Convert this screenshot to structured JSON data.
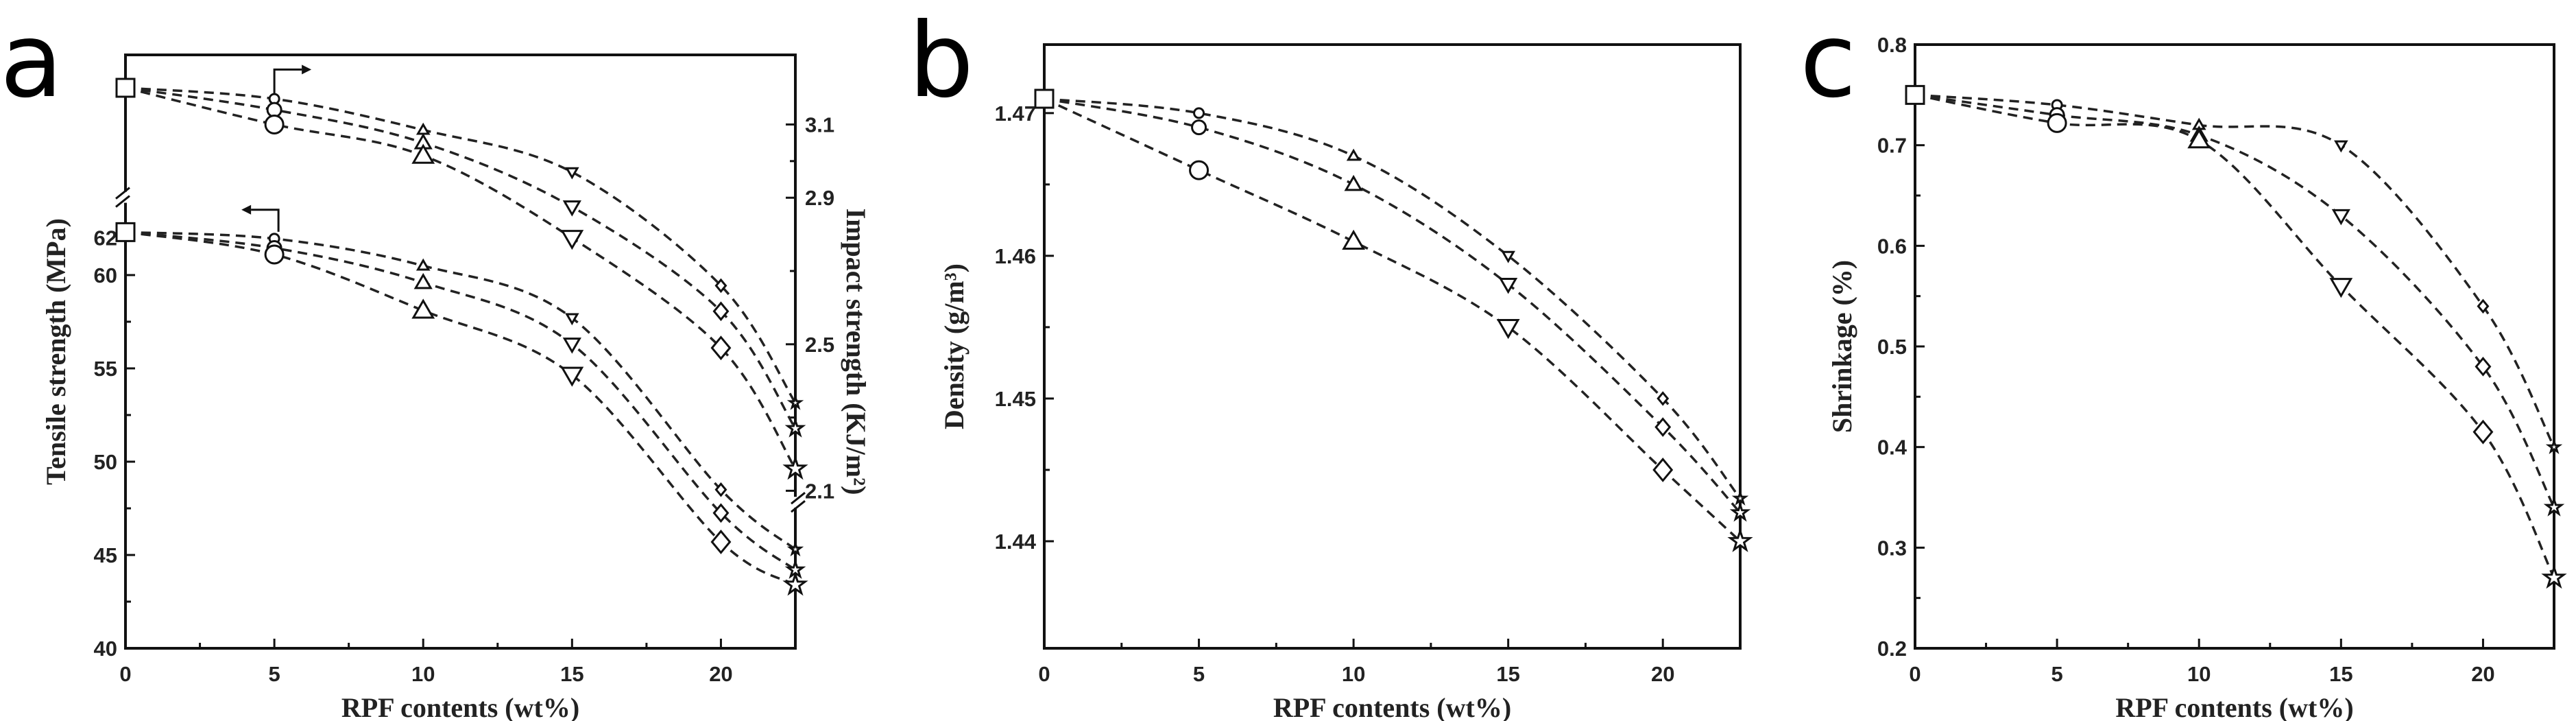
{
  "chart_data": [
    {
      "panel_label": "a",
      "type": "line",
      "xlabel": "RPF contents (wt%)",
      "ylabel": "Tensile strength (MPa)",
      "y2label": "Impact strength (KJ/m²)",
      "x": [
        0,
        5,
        10,
        15,
        20,
        22.5
      ],
      "xlim": [
        0,
        22.5
      ],
      "xticks": [
        0,
        5,
        10,
        15,
        20
      ],
      "ylim": [
        40,
        71.8
      ],
      "yticks": [
        40,
        45,
        50,
        55,
        60,
        62
      ],
      "y2lim": [
        1.67,
        3.29
      ],
      "y2ticks": [
        2.1,
        2.5,
        2.9,
        3.1
      ],
      "axis_break": true,
      "markers": [
        "square",
        "circle",
        "triangle-up",
        "triangle-down",
        "diamond",
        "star"
      ],
      "series": [
        {
          "axis": "left",
          "values": [
            62.3,
            61.95,
            60.5,
            57.7,
            48.5,
            45.3
          ]
        },
        {
          "axis": "left",
          "values": [
            62.3,
            61.45,
            59.6,
            56.3,
            47.25,
            44.2
          ]
        },
        {
          "axis": "left",
          "values": [
            62.3,
            61.1,
            58.1,
            54.65,
            45.7,
            43.4
          ]
        },
        {
          "axis": "right",
          "values": [
            3.2,
            3.17,
            3.085,
            2.97,
            2.66,
            2.34
          ]
        },
        {
          "axis": "right",
          "values": [
            3.2,
            3.14,
            3.05,
            2.875,
            2.59,
            2.27
          ]
        },
        {
          "axis": "right",
          "values": [
            3.2,
            3.1,
            3.015,
            2.79,
            2.49,
            2.16
          ]
        }
      ],
      "fit_lines": "dashed",
      "grid": false
    },
    {
      "panel_label": "b",
      "type": "line",
      "xlabel": "RPF contents (wt%)",
      "ylabel": "Density (g/m³)",
      "x": [
        0,
        5,
        10,
        15,
        20,
        22.5
      ],
      "xlim": [
        0,
        22.5
      ],
      "xticks": [
        0,
        5,
        10,
        15,
        20
      ],
      "ylim": [
        1.4325,
        1.4748
      ],
      "yticks": [
        1.44,
        1.45,
        1.46,
        1.47
      ],
      "markers": [
        "square",
        "circle",
        "triangle-up",
        "triangle-down",
        "diamond",
        "star"
      ],
      "series": [
        {
          "values": [
            1.471,
            1.47,
            1.467,
            1.46,
            1.45,
            1.443
          ]
        },
        {
          "values": [
            1.471,
            1.469,
            1.465,
            1.458,
            1.448,
            1.442
          ]
        },
        {
          "values": [
            1.471,
            1.466,
            1.461,
            1.455,
            1.445,
            1.44
          ]
        }
      ],
      "fit_lines": "dashed",
      "grid": false
    },
    {
      "panel_label": "c",
      "type": "line",
      "xlabel": "RPF contents (wt%)",
      "ylabel": "Shrinkage (%)",
      "x": [
        0,
        5,
        10,
        15,
        20,
        22.5
      ],
      "xlim": [
        0,
        22.5
      ],
      "xticks": [
        0,
        5,
        10,
        15,
        20
      ],
      "ylim": [
        0.2,
        0.8
      ],
      "yticks": [
        0.2,
        0.3,
        0.4,
        0.5,
        0.6,
        0.7,
        0.8
      ],
      "markers": [
        "square",
        "circle",
        "triangle-up",
        "triangle-down",
        "diamond",
        "star"
      ],
      "series": [
        {
          "values": [
            0.75,
            0.74,
            0.72,
            0.7,
            0.54,
            0.4
          ]
        },
        {
          "values": [
            0.75,
            0.73,
            0.71,
            0.63,
            0.48,
            0.34
          ]
        },
        {
          "values": [
            0.75,
            0.722,
            0.705,
            0.56,
            0.415,
            0.27
          ]
        }
      ],
      "fit_lines": "dashed",
      "grid": false
    }
  ]
}
